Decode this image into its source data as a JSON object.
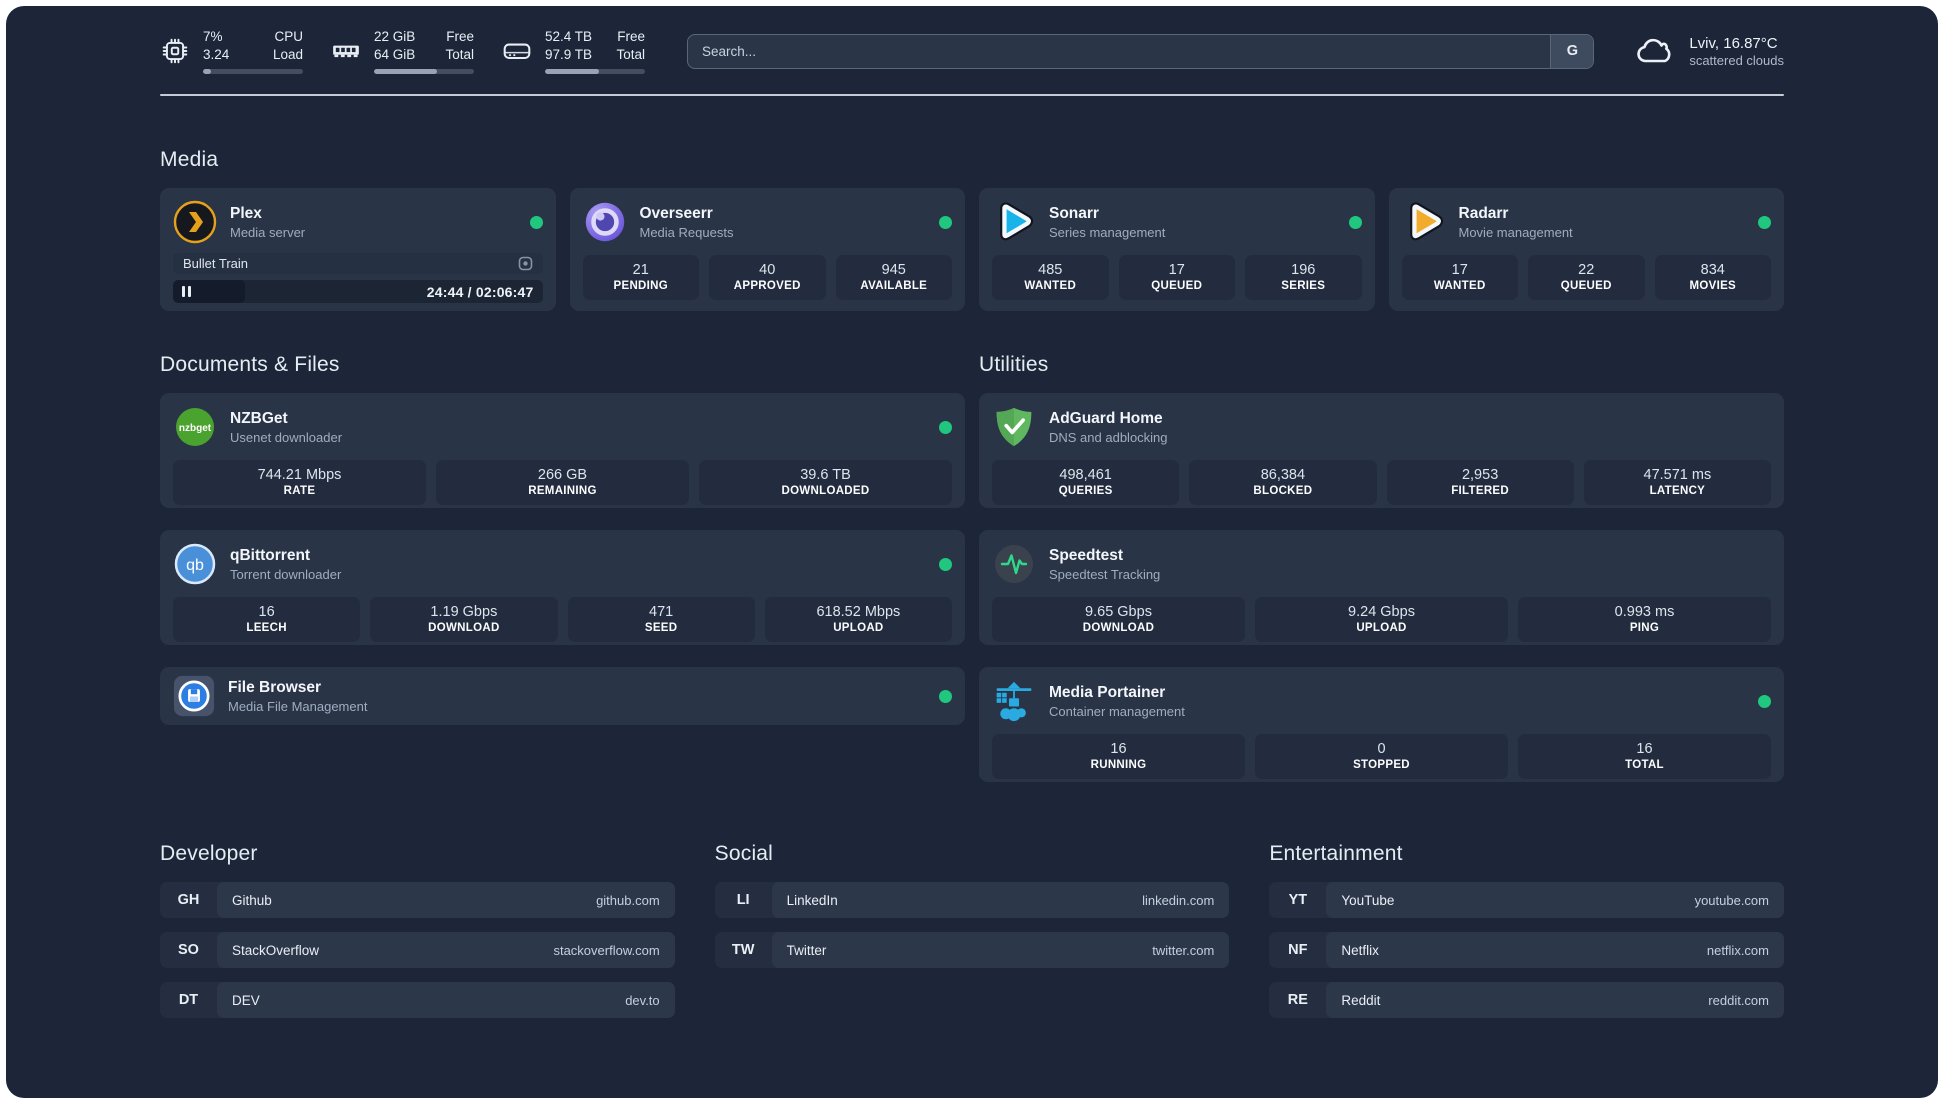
{
  "colors": {
    "page_bg": "#1c2638",
    "card_bg": "#2a3447",
    "stat_bg": "#222c3e",
    "status_online": "#1fc87e",
    "progress_fill": "#98a4b5"
  },
  "header": {
    "system_stats": [
      {
        "icon": "cpu-icon",
        "col1_top": "7%",
        "col1_bottom": "3.24",
        "col2_top": "CPU",
        "col2_bottom": "Load",
        "progress_pct": 8
      },
      {
        "icon": "ram-icon",
        "col1_top": "22 GiB",
        "col1_bottom": "64 GiB",
        "col2_top": "Free",
        "col2_bottom": "Total",
        "progress_pct": 63
      },
      {
        "icon": "disk-icon",
        "col1_top": "52.4 TB",
        "col1_bottom": "97.9 TB",
        "col2_top": "Free",
        "col2_bottom": "Total",
        "progress_pct": 54
      }
    ],
    "search": {
      "placeholder": "Search...",
      "button_label": "G"
    },
    "weather": {
      "location": "Lviv, 16.87°C",
      "condition": "scattered clouds"
    }
  },
  "media": {
    "title": "Media",
    "plex": {
      "name": "Plex",
      "subtitle": "Media server",
      "now_playing": "Bullet Train",
      "time": "24:44 / 02:06:47",
      "progress_pct": 19.5
    },
    "overseerr": {
      "name": "Overseerr",
      "subtitle": "Media Requests",
      "stats": [
        {
          "value": "21",
          "label": "PENDING"
        },
        {
          "value": "40",
          "label": "APPROVED"
        },
        {
          "value": "945",
          "label": "AVAILABLE"
        }
      ]
    },
    "sonarr": {
      "name": "Sonarr",
      "subtitle": "Series management",
      "stats": [
        {
          "value": "485",
          "label": "WANTED"
        },
        {
          "value": "17",
          "label": "QUEUED"
        },
        {
          "value": "196",
          "label": "SERIES"
        }
      ]
    },
    "radarr": {
      "name": "Radarr",
      "subtitle": "Movie management",
      "stats": [
        {
          "value": "17",
          "label": "WANTED"
        },
        {
          "value": "22",
          "label": "QUEUED"
        },
        {
          "value": "834",
          "label": "MOVIES"
        }
      ]
    }
  },
  "documents": {
    "title": "Documents & Files",
    "nzbget": {
      "name": "NZBGet",
      "subtitle": "Usenet downloader",
      "stats": [
        {
          "value": "744.21 Mbps",
          "label": "RATE"
        },
        {
          "value": "266 GB",
          "label": "REMAINING"
        },
        {
          "value": "39.6 TB",
          "label": "DOWNLOADED"
        }
      ]
    },
    "qbittorrent": {
      "name": "qBittorrent",
      "subtitle": "Torrent downloader",
      "stats": [
        {
          "value": "16",
          "label": "LEECH"
        },
        {
          "value": "1.19 Gbps",
          "label": "DOWNLOAD"
        },
        {
          "value": "471",
          "label": "SEED"
        },
        {
          "value": "618.52 Mbps",
          "label": "UPLOAD"
        }
      ]
    },
    "filebrowser": {
      "name": "File Browser",
      "subtitle": "Media File Management"
    }
  },
  "utilities": {
    "title": "Utilities",
    "adguard": {
      "name": "AdGuard Home",
      "subtitle": "DNS and adblocking",
      "stats": [
        {
          "value": "498,461",
          "label": "QUERIES"
        },
        {
          "value": "86,384",
          "label": "BLOCKED"
        },
        {
          "value": "2,953",
          "label": "FILTERED"
        },
        {
          "value": "47.571 ms",
          "label": "LATENCY"
        }
      ]
    },
    "speedtest": {
      "name": "Speedtest",
      "subtitle": "Speedtest Tracking",
      "stats": [
        {
          "value": "9.65 Gbps",
          "label": "DOWNLOAD"
        },
        {
          "value": "9.24 Gbps",
          "label": "UPLOAD"
        },
        {
          "value": "0.993 ms",
          "label": "PING"
        }
      ]
    },
    "portainer": {
      "name": "Media Portainer",
      "subtitle": "Container management",
      "stats": [
        {
          "value": "16",
          "label": "RUNNING"
        },
        {
          "value": "0",
          "label": "STOPPED"
        },
        {
          "value": "16",
          "label": "TOTAL"
        }
      ]
    }
  },
  "bookmarks": [
    {
      "title": "Developer",
      "links": [
        {
          "abbr": "GH",
          "name": "Github",
          "url": "github.com"
        },
        {
          "abbr": "SO",
          "name": "StackOverflow",
          "url": "stackoverflow.com"
        },
        {
          "abbr": "DT",
          "name": "DEV",
          "url": "dev.to"
        }
      ]
    },
    {
      "title": "Social",
      "links": [
        {
          "abbr": "LI",
          "name": "LinkedIn",
          "url": "linkedin.com"
        },
        {
          "abbr": "TW",
          "name": "Twitter",
          "url": "twitter.com"
        }
      ]
    },
    {
      "title": "Entertainment",
      "links": [
        {
          "abbr": "YT",
          "name": "YouTube",
          "url": "youtube.com"
        },
        {
          "abbr": "NF",
          "name": "Netflix",
          "url": "netflix.com"
        },
        {
          "abbr": "RE",
          "name": "Reddit",
          "url": "reddit.com"
        }
      ]
    }
  ]
}
